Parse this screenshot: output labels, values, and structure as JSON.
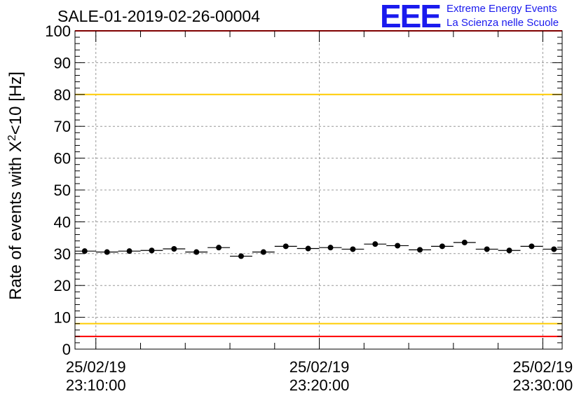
{
  "header": {
    "run_title": "SALE-01-2019-02-26-00004",
    "logo_text": "EEE",
    "logo_line1": "Extreme Energy Events",
    "logo_line2": "La Scienza nelle Scuole"
  },
  "colors": {
    "points": "#000000",
    "limit_red": "#ff0000",
    "limit_yellow": "#ffcc00",
    "grid": "#999999",
    "logo": "#1a1aee"
  },
  "chart_data": {
    "type": "scatter",
    "title": "SALE-01-2019-02-26-00004",
    "ylabel_main": "Rate of events with X",
    "ylabel_sup": "2",
    "ylabel_tail": "<10 [Hz]",
    "ylim": [
      0,
      100
    ],
    "yticks": [
      0,
      10,
      20,
      30,
      40,
      50,
      60,
      70,
      80,
      90,
      100
    ],
    "xlim": [
      "23:09:04",
      "23:30:52"
    ],
    "xticks": [
      {
        "x": "23:10:00",
        "date": "25/02/19",
        "time": "23:10:00"
      },
      {
        "x": "23:20:00",
        "date": "25/02/19",
        "time": "23:20:00"
      },
      {
        "x": "23:30:00",
        "date": "25/02/19",
        "time": "23:30:00"
      }
    ],
    "grid": true,
    "reference_lines": [
      {
        "y": 100,
        "color": "#ff0000"
      },
      {
        "y": 80,
        "color": "#ffcc00"
      },
      {
        "y": 8,
        "color": "#ffcc00"
      },
      {
        "y": 4,
        "color": "#ff0000"
      }
    ],
    "points": [
      {
        "x": "23:09:30",
        "y": 30.8
      },
      {
        "x": "23:10:30",
        "y": 30.5
      },
      {
        "x": "23:11:30",
        "y": 30.8
      },
      {
        "x": "23:12:30",
        "y": 31.0
      },
      {
        "x": "23:13:30",
        "y": 31.5
      },
      {
        "x": "23:14:30",
        "y": 30.5
      },
      {
        "x": "23:15:30",
        "y": 31.9
      },
      {
        "x": "23:16:30",
        "y": 29.2
      },
      {
        "x": "23:17:30",
        "y": 30.5
      },
      {
        "x": "23:18:30",
        "y": 32.3
      },
      {
        "x": "23:19:30",
        "y": 31.6
      },
      {
        "x": "23:20:30",
        "y": 31.9
      },
      {
        "x": "23:21:30",
        "y": 31.4
      },
      {
        "x": "23:22:30",
        "y": 33.0
      },
      {
        "x": "23:23:30",
        "y": 32.5
      },
      {
        "x": "23:24:30",
        "y": 31.2
      },
      {
        "x": "23:25:30",
        "y": 32.3
      },
      {
        "x": "23:26:30",
        "y": 33.5
      },
      {
        "x": "23:27:30",
        "y": 31.4
      },
      {
        "x": "23:28:30",
        "y": 31.0
      },
      {
        "x": "23:29:30",
        "y": 32.3
      },
      {
        "x": "23:30:30",
        "y": 31.4
      }
    ],
    "bin_width_s": 60
  }
}
